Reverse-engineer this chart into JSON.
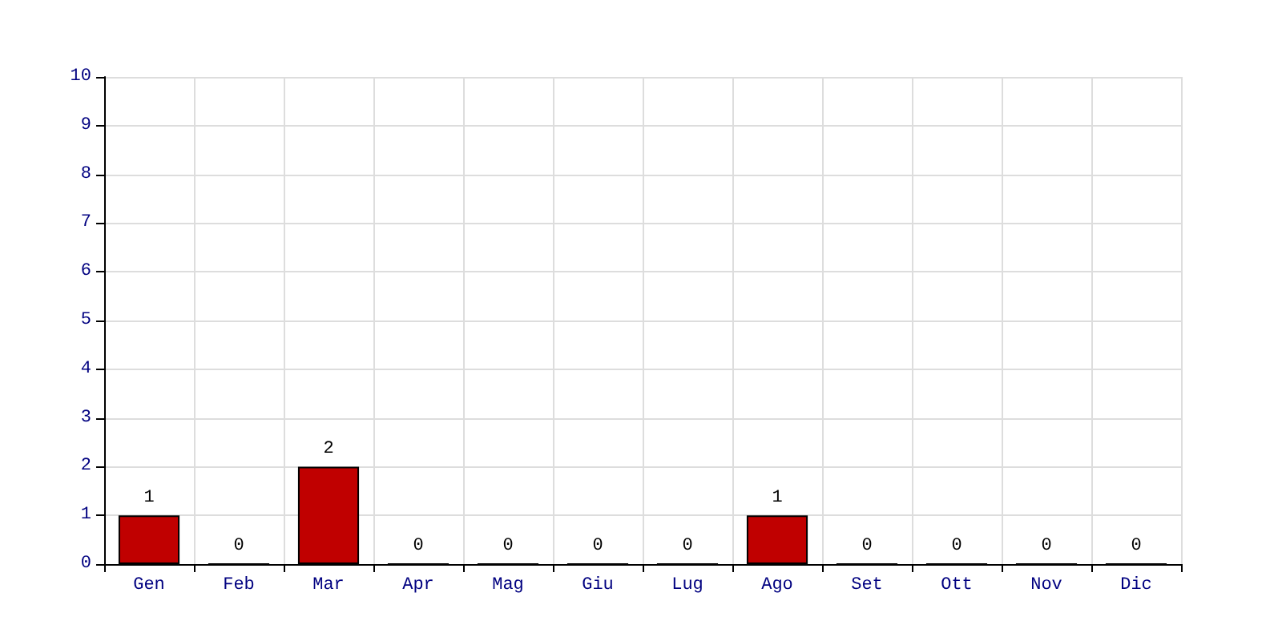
{
  "chart_data": {
    "type": "bar",
    "categories": [
      "Gen",
      "Feb",
      "Mar",
      "Apr",
      "Mag",
      "Giu",
      "Lug",
      "Ago",
      "Set",
      "Ott",
      "Nov",
      "Dic"
    ],
    "values": [
      1,
      0,
      2,
      0,
      0,
      0,
      0,
      1,
      0,
      0,
      0,
      0
    ],
    "color": "#c00000",
    "ylim": [
      0,
      10
    ],
    "yticks": [
      0,
      1,
      2,
      3,
      4,
      5,
      6,
      7,
      8,
      9,
      10
    ],
    "grid": true,
    "data_labels": true
  }
}
